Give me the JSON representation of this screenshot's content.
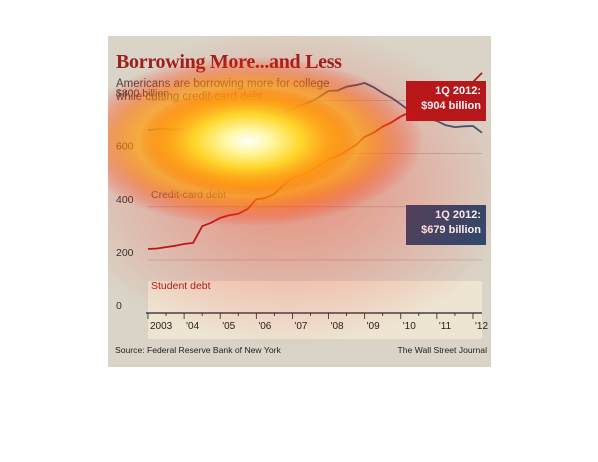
{
  "title": "Borrowing More...and Less",
  "subtitle": "Americans are borrowing more for college while cutting credit-card debt.",
  "source": "Source: Federal Reserve Bank of New York",
  "publisher": "The Wall Street Journal",
  "callouts": {
    "student": {
      "line1": "1Q 2012:",
      "line2": "$904 billion",
      "color": "#b3181c"
    },
    "credit": {
      "line1": "1Q 2012:",
      "line2": "$679 billion",
      "color": "#2c4a6e"
    }
  },
  "chart_data": {
    "type": "line",
    "title": "Borrowing More...and Less",
    "xlabel": "",
    "ylabel": "",
    "xlim": [
      2003,
      2012.25
    ],
    "ylim": [
      0,
      900
    ],
    "y_ticks": [
      0,
      200,
      400,
      600,
      800
    ],
    "y_tick_labels": [
      "0",
      "200",
      "400",
      "600",
      "$800 billion"
    ],
    "x_ticks": [
      2003,
      2004,
      2005,
      2006,
      2007,
      2008,
      2009,
      2010,
      2011,
      2012
    ],
    "x_tick_labels": [
      "2003",
      "'04",
      "'05",
      "'06",
      "'07",
      "'08",
      "'09",
      "'10",
      "'11",
      "'12"
    ],
    "grid": "horizontal",
    "series": [
      {
        "name": "Student debt",
        "color": "#b3181c",
        "x": [
          2003,
          2003.25,
          2003.5,
          2003.75,
          2004,
          2004.25,
          2004.5,
          2004.75,
          2005,
          2005.25,
          2005.5,
          2005.75,
          2006,
          2006.25,
          2006.5,
          2006.75,
          2007,
          2007.25,
          2007.5,
          2007.75,
          2008,
          2008.25,
          2008.5,
          2008.75,
          2009,
          2009.25,
          2009.5,
          2009.75,
          2010,
          2010.25,
          2010.5,
          2010.75,
          2011,
          2011.25,
          2011.5,
          2011.75,
          2012,
          2012.25
        ],
        "y": [
          241,
          243,
          248,
          253,
          260,
          264,
          327,
          340,
          358,
          368,
          374,
          391,
          428,
          433,
          449,
          481,
          510,
          519,
          536,
          557,
          579,
          591,
          611,
          632,
          663,
          679,
          702,
          718,
          740,
          756,
          774,
          786,
          809,
          825,
          841,
          853,
          870,
          904
        ]
      },
      {
        "name": "Credit-card debt",
        "color": "#3d5675",
        "x": [
          2003,
          2003.25,
          2003.5,
          2003.75,
          2004,
          2004.25,
          2004.5,
          2004.75,
          2005,
          2005.25,
          2005.5,
          2005.75,
          2006,
          2006.25,
          2006.5,
          2006.75,
          2007,
          2007.25,
          2007.5,
          2007.75,
          2008,
          2008.25,
          2008.5,
          2008.75,
          2009,
          2009.25,
          2009.5,
          2009.75,
          2010,
          2010.25,
          2010.5,
          2010.75,
          2011,
          2011.25,
          2011.5,
          2011.75,
          2012,
          2012.25
        ],
        "y": [
          688,
          692,
          693,
          690,
          695,
          700,
          700,
          706,
          712,
          710,
          714,
          725,
          733,
          727,
          740,
          752,
          769,
          784,
          795,
          814,
          836,
          838,
          852,
          858,
          866,
          850,
          828,
          810,
          786,
          761,
          744,
          732,
          723,
          707,
          700,
          703,
          704,
          679
        ]
      }
    ]
  }
}
